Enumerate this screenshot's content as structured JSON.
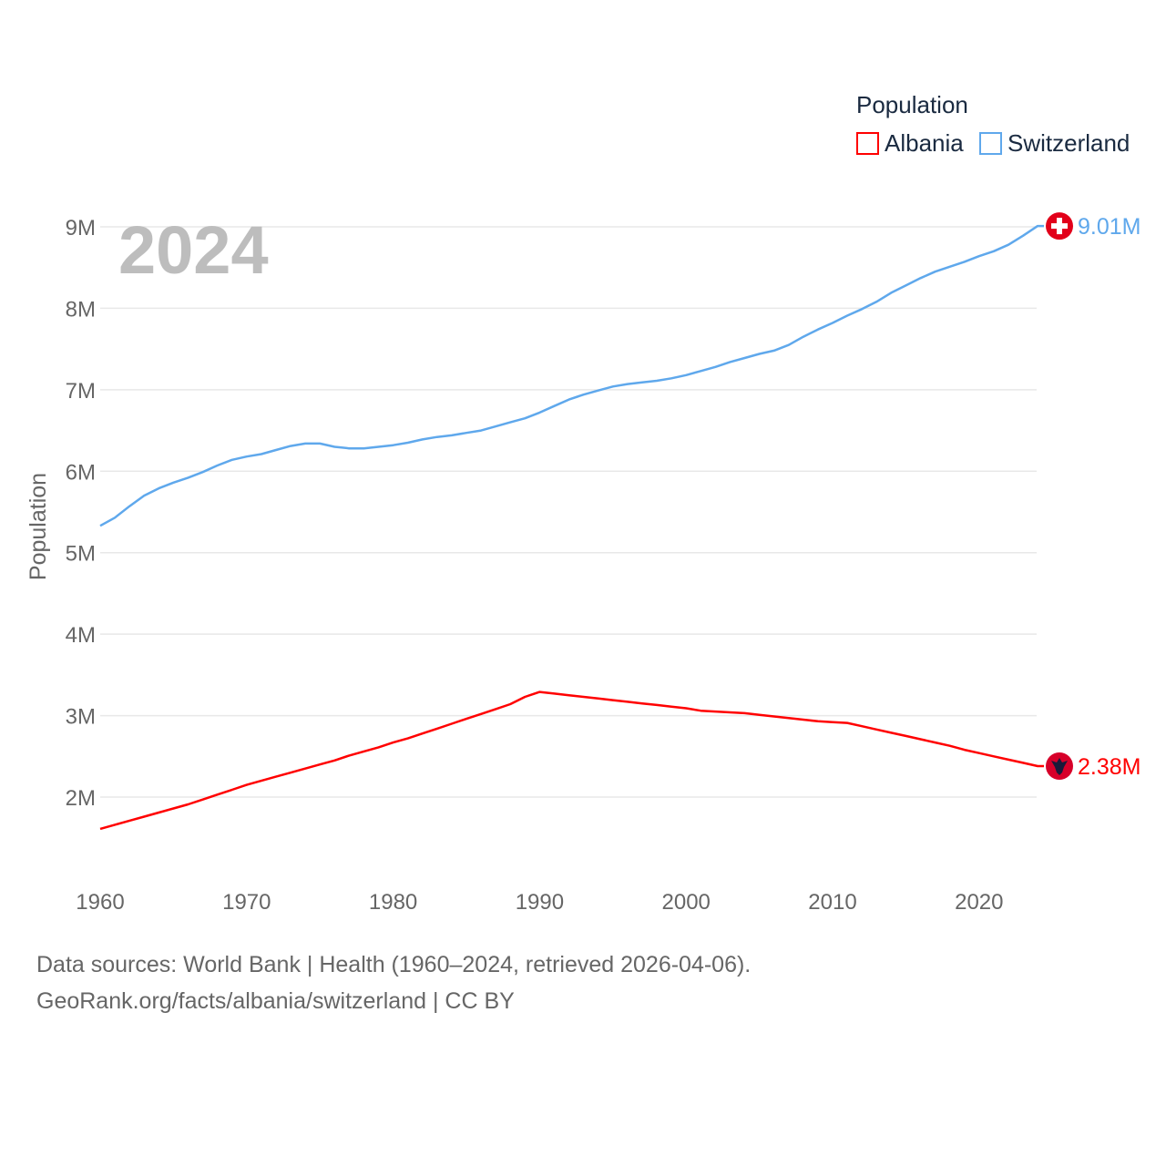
{
  "chart_data": {
    "type": "line",
    "year_label": "2024",
    "ylabel": "Population",
    "legend_title": "Population",
    "legend_position": "top-right",
    "x": [
      1960,
      1961,
      1962,
      1963,
      1964,
      1965,
      1966,
      1967,
      1968,
      1969,
      1970,
      1971,
      1972,
      1973,
      1974,
      1975,
      1976,
      1977,
      1978,
      1979,
      1980,
      1981,
      1982,
      1983,
      1984,
      1985,
      1986,
      1987,
      1988,
      1989,
      1990,
      1991,
      1992,
      1993,
      1994,
      1995,
      1996,
      1997,
      1998,
      1999,
      2000,
      2001,
      2002,
      2003,
      2004,
      2005,
      2006,
      2007,
      2008,
      2009,
      2010,
      2011,
      2012,
      2013,
      2014,
      2015,
      2016,
      2017,
      2018,
      2019,
      2020,
      2021,
      2022,
      2023,
      2024
    ],
    "xlim": [
      1960,
      2024
    ],
    "ylim": [
      1,
      9.6
    ],
    "xticks": [
      1960,
      1970,
      1980,
      1990,
      2000,
      2010,
      2020
    ],
    "yticks": [
      2,
      3,
      4,
      5,
      6,
      7,
      8,
      9
    ],
    "ytick_labels": [
      "2M",
      "3M",
      "4M",
      "5M",
      "6M",
      "7M",
      "8M",
      "9M"
    ],
    "grid": true,
    "series": [
      {
        "name": "Albania",
        "color": "#ff0000",
        "end_label": "2.38M",
        "flag": "albania-flag",
        "values": [
          1.61,
          1.66,
          1.71,
          1.76,
          1.81,
          1.86,
          1.91,
          1.97,
          2.03,
          2.09,
          2.15,
          2.2,
          2.25,
          2.3,
          2.35,
          2.4,
          2.45,
          2.51,
          2.56,
          2.61,
          2.67,
          2.72,
          2.78,
          2.84,
          2.9,
          2.96,
          3.02,
          3.08,
          3.14,
          3.23,
          3.29,
          3.27,
          3.25,
          3.23,
          3.21,
          3.19,
          3.17,
          3.15,
          3.13,
          3.11,
          3.09,
          3.06,
          3.05,
          3.04,
          3.03,
          3.01,
          2.99,
          2.97,
          2.95,
          2.93,
          2.92,
          2.91,
          2.87,
          2.83,
          2.79,
          2.75,
          2.71,
          2.67,
          2.63,
          2.58,
          2.54,
          2.5,
          2.46,
          2.42,
          2.38
        ]
      },
      {
        "name": "Switzerland",
        "color": "#5fa8ec",
        "end_label": "9.01M",
        "flag": "switzerland-flag",
        "values": [
          5.33,
          5.43,
          5.57,
          5.7,
          5.79,
          5.86,
          5.92,
          5.99,
          6.07,
          6.14,
          6.18,
          6.21,
          6.26,
          6.31,
          6.34,
          6.34,
          6.3,
          6.28,
          6.28,
          6.3,
          6.32,
          6.35,
          6.39,
          6.42,
          6.44,
          6.47,
          6.5,
          6.55,
          6.6,
          6.65,
          6.72,
          6.8,
          6.88,
          6.94,
          6.99,
          7.04,
          7.07,
          7.09,
          7.11,
          7.14,
          7.18,
          7.23,
          7.28,
          7.34,
          7.39,
          7.44,
          7.48,
          7.55,
          7.65,
          7.74,
          7.82,
          7.91,
          7.99,
          8.08,
          8.19,
          8.28,
          8.37,
          8.45,
          8.51,
          8.57,
          8.64,
          8.7,
          8.78,
          8.89,
          9.01
        ]
      }
    ]
  },
  "footer": {
    "sources": "Data sources: World Bank | Health (1960–2024, retrieved 2026-04-06).",
    "credit": "GeoRank.org/facts/albania/switzerland | CC BY"
  }
}
